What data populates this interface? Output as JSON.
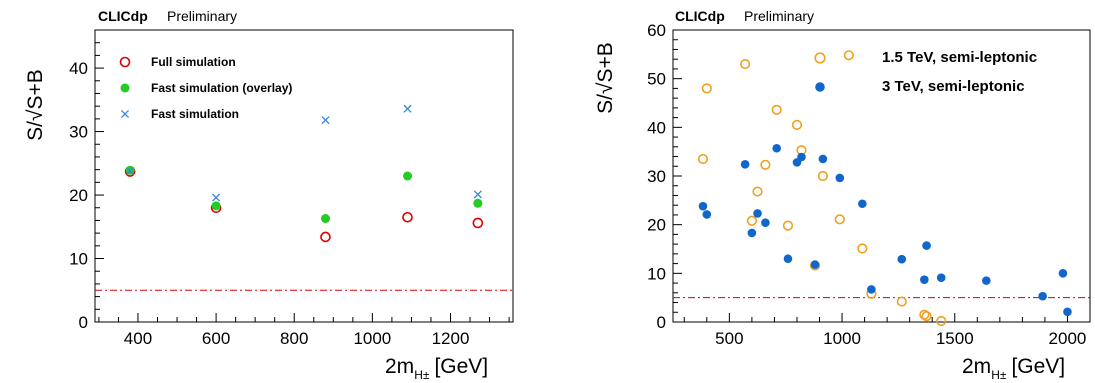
{
  "chart_data": [
    {
      "type": "scatter",
      "branding": {
        "experiment": "CLICdp",
        "status": "Preliminary"
      },
      "xlabel": "2m",
      "xlabel_sub": "H±",
      "xlabel_unit": "[GeV]",
      "ylabel": "S/√S+B",
      "xlim": [
        290,
        1360
      ],
      "ylim": [
        0,
        46
      ],
      "xticks": [
        400,
        600,
        800,
        1000,
        1200
      ],
      "yticks": [
        0,
        10,
        20,
        30,
        40
      ],
      "reference_line": {
        "y": 5,
        "color": "#dd0000"
      },
      "legend_position": "top-left",
      "series": [
        {
          "name": "Full simulation",
          "marker": "open-circle",
          "color": "#dd0000",
          "x": [
            380,
            600,
            880,
            1090,
            1270
          ],
          "y": [
            23.7,
            18.0,
            13.4,
            16.5,
            15.6
          ]
        },
        {
          "name": "Fast simulation (overlay)",
          "marker": "filled-circle",
          "color": "#22cc22",
          "x": [
            380,
            600,
            880,
            1090,
            1270
          ],
          "y": [
            23.9,
            18.3,
            16.3,
            23.0,
            18.7
          ]
        },
        {
          "name": "Fast simulation",
          "marker": "cross",
          "color": "#3388dd",
          "x": [
            380,
            600,
            880,
            1090,
            1270
          ],
          "y": [
            23.8,
            19.6,
            31.8,
            33.6,
            20.1
          ]
        }
      ]
    },
    {
      "type": "scatter",
      "branding": {
        "experiment": "CLICdp",
        "status": "Preliminary"
      },
      "xlabel": "2m",
      "xlabel_sub": "H±",
      "xlabel_unit": "[GeV]",
      "ylabel": "S/√S+B",
      "xlim": [
        250,
        2100
      ],
      "ylim": [
        0,
        60
      ],
      "xticks": [
        500,
        1000,
        1500,
        2000
      ],
      "yticks": [
        0,
        10,
        20,
        30,
        40,
        50,
        60
      ],
      "reference_line": {
        "y": 5,
        "color": "#dd0000"
      },
      "legend_position": "top-right",
      "series": [
        {
          "name": "1.5 TeV, semi-leptonic",
          "marker": "open-circle",
          "color": "#f0a020",
          "x": [
            383,
            400,
            570,
            600,
            625,
            660,
            710,
            760,
            800,
            820,
            880,
            915,
            990,
            1030,
            1090,
            1130,
            1265,
            1365,
            1375,
            1440
          ],
          "y": [
            33.5,
            48.0,
            53.0,
            20.8,
            26.8,
            32.3,
            43.6,
            19.8,
            40.5,
            35.3,
            11.6,
            30.0,
            21.1,
            54.8,
            15.1,
            5.8,
            4.2,
            1.5,
            1.2,
            0.2
          ]
        },
        {
          "name": "3 TeV, semi-leptonic",
          "marker": "filled-circle",
          "color": "#1166cc",
          "x": [
            383,
            400,
            570,
            600,
            625,
            660,
            710,
            760,
            800,
            820,
            880,
            915,
            990,
            1090,
            1130,
            1265,
            1365,
            1375,
            1440,
            1640,
            1890,
            1980,
            2000
          ],
          "y": [
            23.8,
            22.1,
            32.4,
            18.3,
            22.3,
            20.4,
            35.7,
            13.0,
            32.8,
            33.9,
            11.8,
            33.5,
            29.6,
            24.3,
            6.7,
            12.9,
            8.7,
            15.7,
            9.1,
            8.5,
            5.3,
            10.0,
            2.1
          ]
        }
      ]
    }
  ]
}
